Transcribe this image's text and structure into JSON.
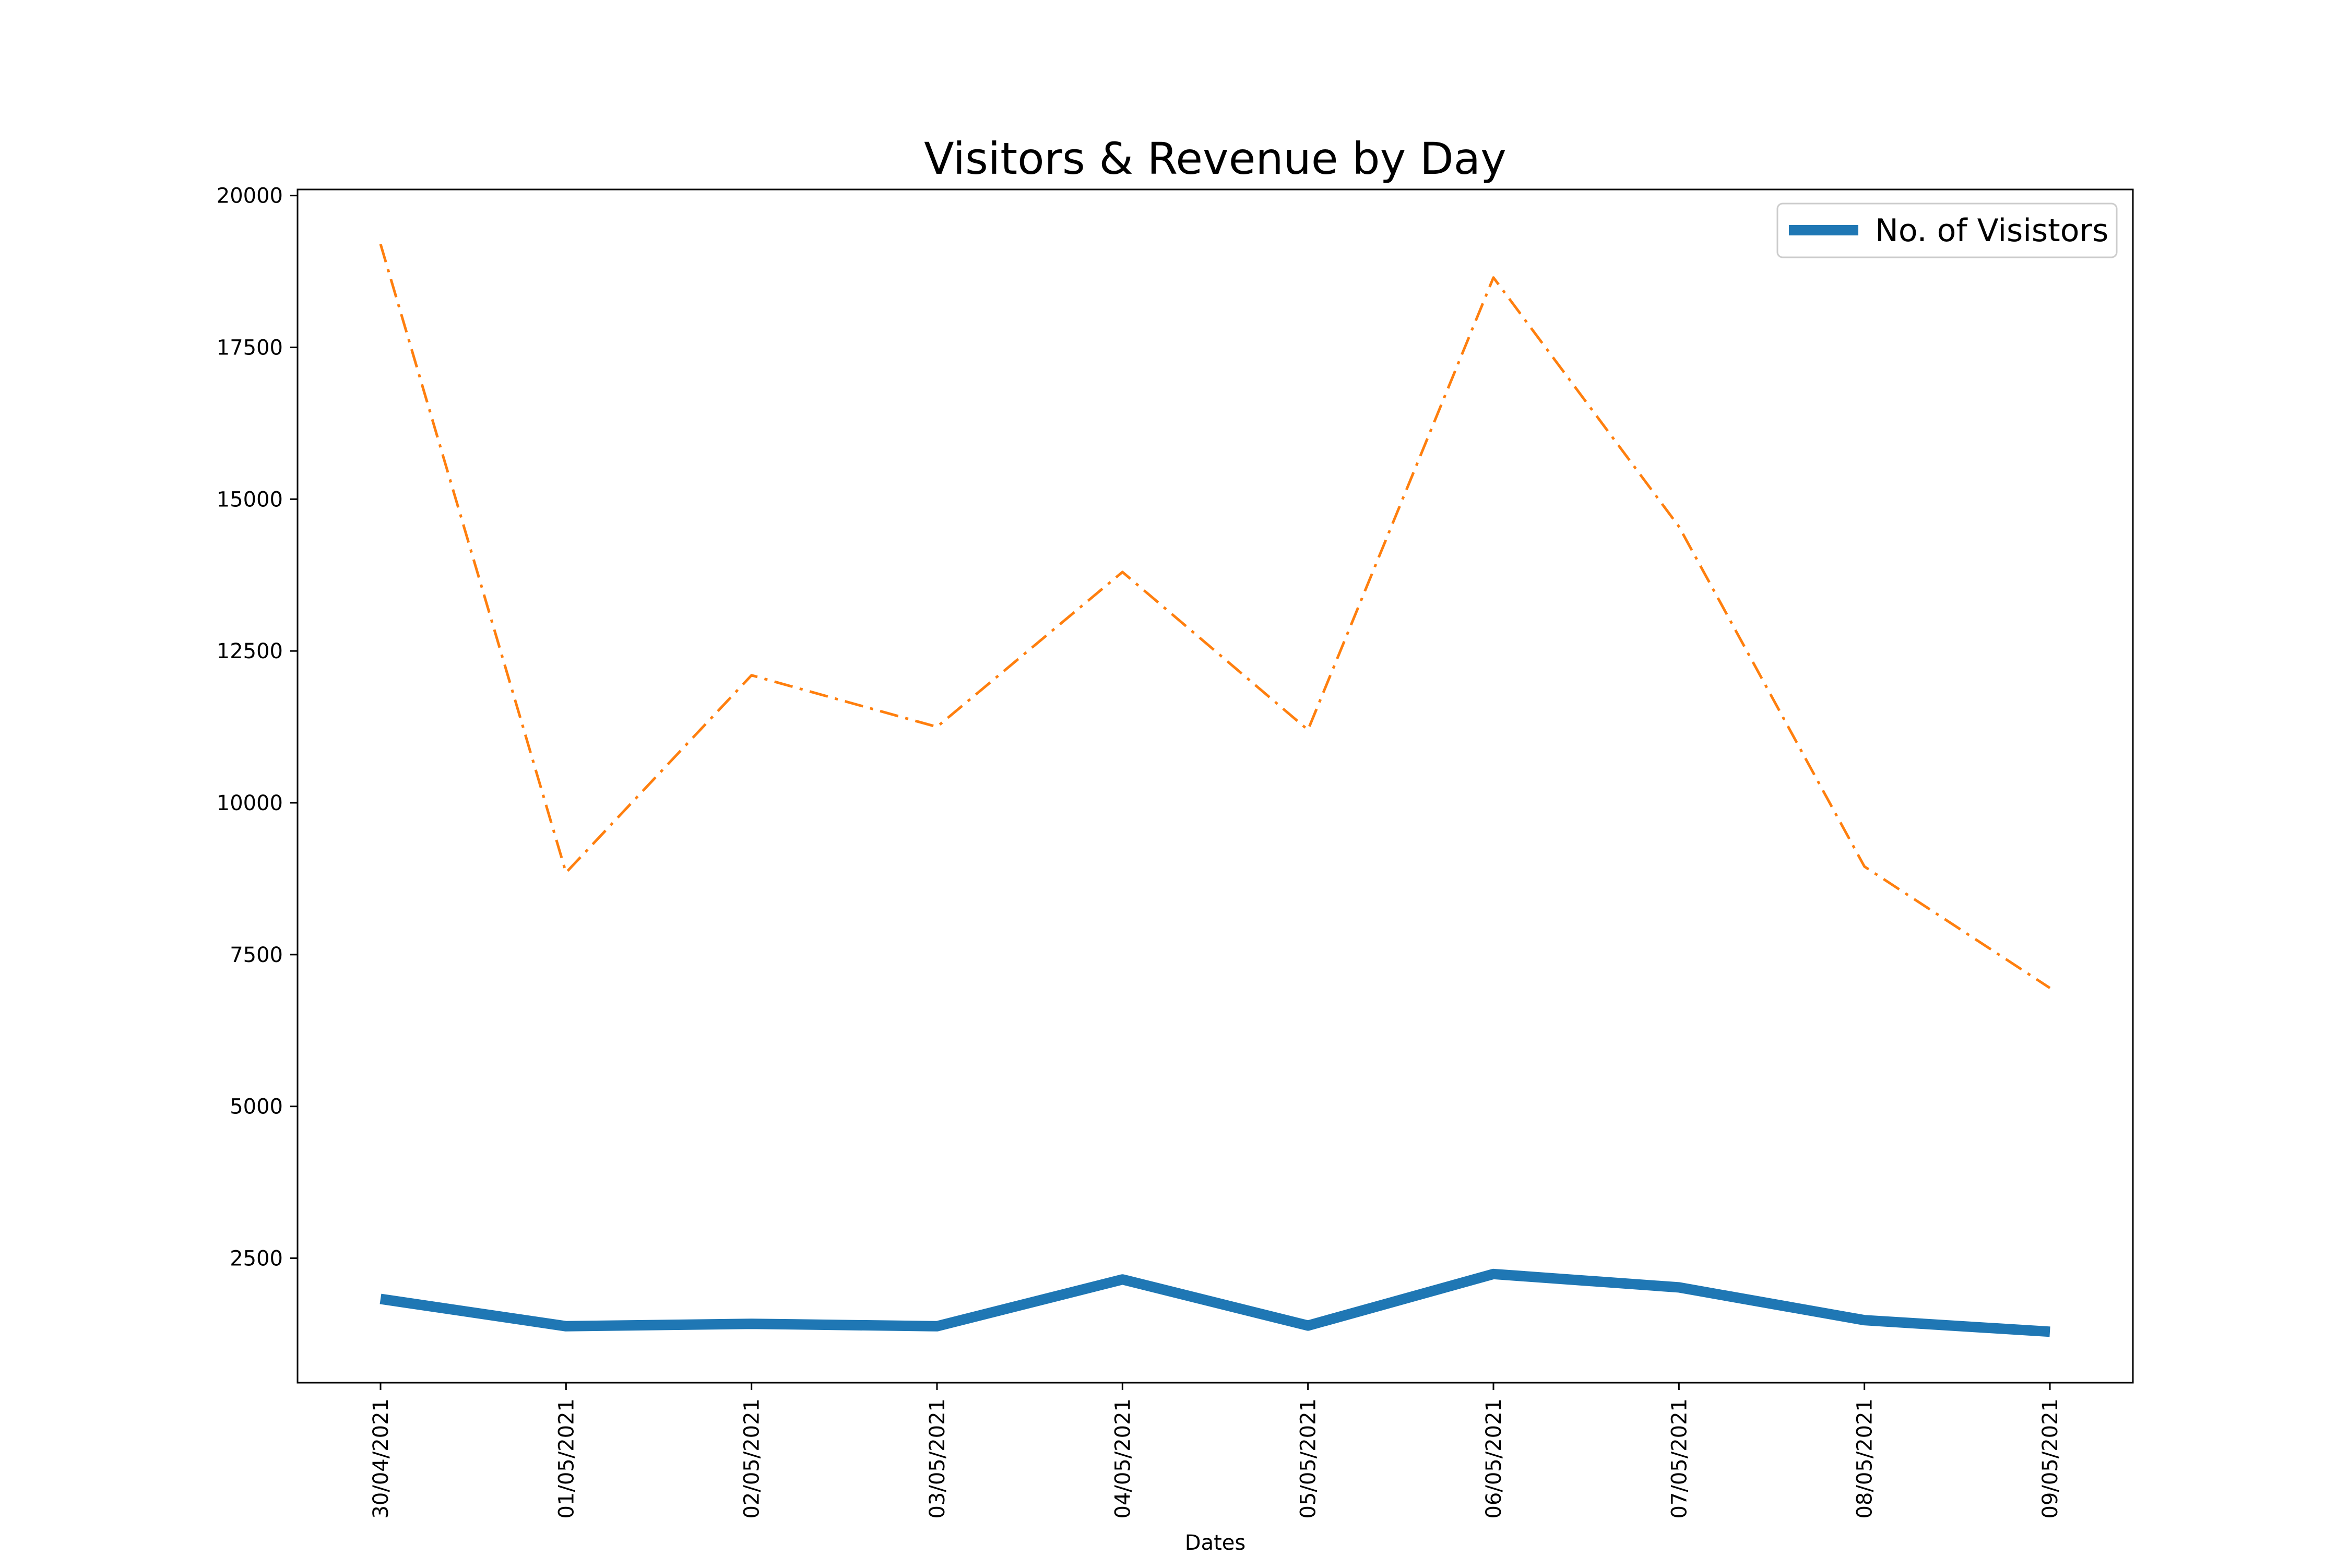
{
  "chart_data": {
    "type": "line",
    "title": "Visitors & Revenue by Day",
    "xlabel": "Dates",
    "ylabel": "",
    "categories": [
      "30/04/2021",
      "01/05/2021",
      "02/05/2021",
      "03/05/2021",
      "04/05/2021",
      "05/05/2021",
      "06/05/2021",
      "07/05/2021",
      "08/05/2021",
      "09/05/2021"
    ],
    "ylim": [
      450,
      20100
    ],
    "yticks": [
      2500,
      5000,
      7500,
      10000,
      12500,
      15000,
      17500,
      20000
    ],
    "grid": false,
    "legend_position": "top-right",
    "series": [
      {
        "name": "No. of Visistors",
        "color": "#1f77b4",
        "style": "solid",
        "in_legend": true,
        "values": [
          1830,
          1380,
          1420,
          1380,
          2150,
          1390,
          2240,
          2020,
          1480,
          1290
        ]
      },
      {
        "color": "#ff7f0e",
        "style": "dashdot",
        "in_legend": false,
        "values": [
          19200,
          8850,
          12100,
          11250,
          13800,
          11200,
          18650,
          14550,
          8950,
          6950
        ]
      }
    ]
  }
}
